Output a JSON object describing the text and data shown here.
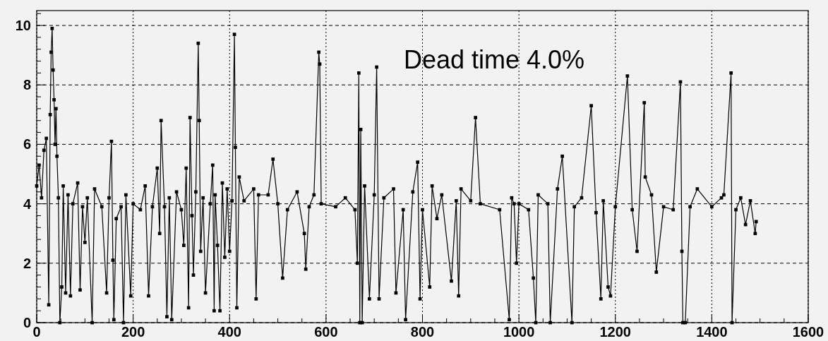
{
  "chart_data": {
    "type": "line",
    "annotations": [
      "Dead time 4.0%"
    ],
    "x": [
      0,
      5,
      10,
      15,
      20,
      25,
      28,
      30,
      32,
      34,
      36,
      38,
      40,
      42,
      45,
      48,
      52,
      55,
      60,
      65,
      70,
      75,
      85,
      90,
      95,
      100,
      105,
      115,
      120,
      135,
      145,
      150,
      155,
      158,
      160,
      165,
      175,
      180,
      185,
      195,
      200,
      215,
      225,
      232,
      240,
      250,
      255,
      258,
      265,
      270,
      275,
      280,
      290,
      300,
      305,
      310,
      315,
      318,
      322,
      325,
      330,
      335,
      337,
      340,
      345,
      350,
      360,
      365,
      368,
      370,
      375,
      380,
      385,
      390,
      395,
      400,
      405,
      410,
      412,
      415,
      420,
      430,
      450,
      455,
      460,
      480,
      490,
      500,
      510,
      520,
      540,
      555,
      558,
      565,
      575,
      585,
      587,
      590,
      620,
      640,
      660,
      665,
      668,
      670,
      672,
      675,
      680,
      690,
      700,
      705,
      710,
      720,
      740,
      745,
      760,
      765,
      780,
      790,
      795,
      800,
      815,
      820,
      830,
      840,
      860,
      870,
      875,
      880,
      900,
      910,
      920,
      960,
      980,
      985,
      990,
      995,
      1000,
      1020,
      1030,
      1035,
      1040,
      1060,
      1065,
      1080,
      1090,
      1110,
      1115,
      1130,
      1150,
      1160,
      1170,
      1175,
      1185,
      1190,
      1200,
      1225,
      1235,
      1245,
      1260,
      1262,
      1275,
      1285,
      1300,
      1320,
      1335,
      1338,
      1340,
      1345,
      1355,
      1370,
      1400,
      1420,
      1425,
      1440,
      1442,
      1450,
      1460,
      1470,
      1480,
      1490,
      1492
    ],
    "series": [
      {
        "color": "#000000",
        "values": [
          4.6,
          5.3,
          4.2,
          5.8,
          6.2,
          0.6,
          7.0,
          9.1,
          9.9,
          8.5,
          7.5,
          6.0,
          7.2,
          5.6,
          4.2,
          0,
          1.2,
          4.6,
          1.0,
          4.3,
          0.9,
          4.0,
          4.7,
          1.1,
          3.9,
          2.7,
          4.2,
          0,
          4.5,
          3.9,
          1.0,
          4.2,
          6.1,
          2.1,
          0.1,
          3.5,
          3.9,
          0,
          4.3,
          0.9,
          4.0,
          3.8,
          4.6,
          0.9,
          3.9,
          5.2,
          3.0,
          6.8,
          3.9,
          0.2,
          4.2,
          0.1,
          4.4,
          3.8,
          2.6,
          5.2,
          0.5,
          6.9,
          3.6,
          1.6,
          4.4,
          9.4,
          6.8,
          2.4,
          4.2,
          1.0,
          4.0,
          5.3,
          0.4,
          4.3,
          2.6,
          0.4,
          4.7,
          2.2,
          4.5,
          2.4,
          4.1,
          9.7,
          5.9,
          0.5,
          4.9,
          4.1,
          4.5,
          0.8,
          4.3,
          4.3,
          5.5,
          4.0,
          1.5,
          3.8,
          4.4,
          3.0,
          1.8,
          3.9,
          4.3,
          9.1,
          8.7,
          4.0,
          3.9,
          4.2,
          3.8,
          2.0,
          8.4,
          0,
          6.5,
          0,
          4.6,
          0.8,
          4.3,
          8.6,
          0.8,
          4.2,
          4.5,
          1.0,
          3.8,
          0.1,
          4.4,
          5.4,
          0.8,
          3.8,
          1.2,
          4.6,
          3.5,
          4.3,
          1.4,
          4.1,
          0.9,
          4.5,
          4.1,
          6.9,
          4.0,
          3.8,
          0.1,
          4.2,
          4.0,
          2.0,
          4.0,
          3.8,
          1.5,
          0,
          4.3,
          4.0,
          0,
          4.5,
          5.6,
          0,
          3.9,
          4.2,
          7.3,
          3.7,
          0.8,
          4.1,
          1.2,
          0.9,
          3.9,
          8.3,
          3.8,
          2.4,
          7.4,
          4.9,
          4.3,
          1.7,
          3.9,
          3.8,
          8.1,
          2.4,
          0,
          0,
          3.9,
          4.5,
          3.9,
          4.2,
          4.3,
          8.4,
          0,
          3.8,
          4.2,
          3.3,
          4.1,
          3.0,
          3.4
        ]
      }
    ],
    "xlim": [
      0,
      1600
    ],
    "xticks": [
      0,
      200,
      400,
      600,
      800,
      1000,
      1200,
      1400,
      1600
    ],
    "ylim": [
      0,
      10.5
    ],
    "yticks": [
      0,
      2,
      4,
      6,
      8,
      10
    ],
    "grid": true,
    "marker": "square",
    "line_style": "solid"
  }
}
